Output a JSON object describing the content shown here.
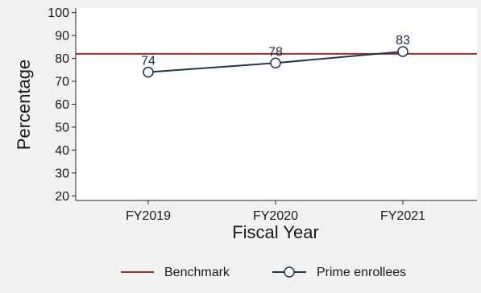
{
  "chart_data": {
    "type": "line",
    "categories": [
      "FY2019",
      "FY2020",
      "FY2021"
    ],
    "xlabel": "Fiscal Year",
    "ylabel": "Percentage",
    "ylim": [
      18,
      102
    ],
    "yticks": [
      20,
      30,
      40,
      50,
      60,
      70,
      80,
      90,
      100
    ],
    "grid": false,
    "legend_position": "bottom",
    "benchmark": {
      "name": "Benchmark",
      "value": 82,
      "color": "#a52a2a"
    },
    "series": [
      {
        "name": "Prime enrollees",
        "values": [
          74,
          78,
          83
        ],
        "color": "#1f3552",
        "marker": "open-circle"
      }
    ]
  }
}
